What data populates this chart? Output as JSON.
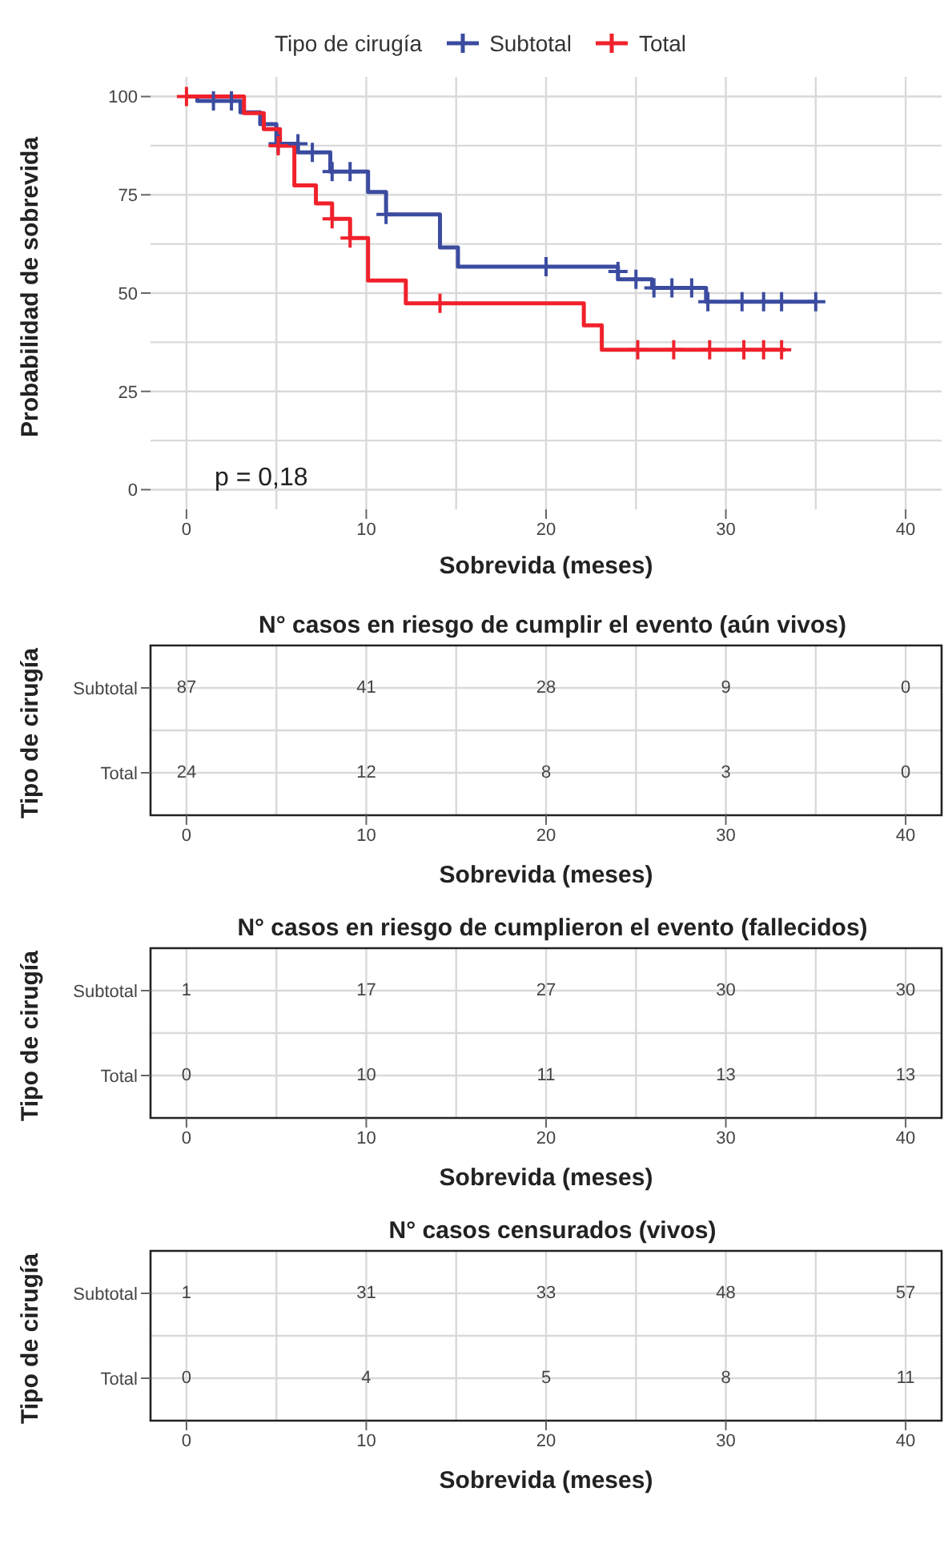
{
  "chart_data": [
    {
      "type": "step",
      "ylabel": "Probabilidad de sobrevida",
      "xlabel": "Sobrevida (meses)",
      "legend_title": "Tipo de cirugía",
      "legend": "top",
      "grid": true,
      "xlim": [
        -2,
        42
      ],
      "xticks": [
        0,
        10,
        20,
        30,
        40
      ],
      "ylim": [
        -5,
        105
      ],
      "yticks": [
        0,
        25,
        50,
        75,
        100
      ],
      "annotations": [
        "p = 0,18"
      ],
      "series": [
        {
          "name": "Subtotal",
          "color": "#3b4ba0",
          "marker": "none",
          "x": [
            0,
            0.6,
            3,
            4.1,
            5,
            6.2,
            8,
            10.1,
            11.1,
            14.1,
            15.1,
            24,
            25.9,
            28.9,
            35
          ],
          "values": [
            100,
            98.9,
            96,
            93,
            88,
            85.8,
            80.9,
            75.7,
            70,
            61.6,
            56.7,
            53.5,
            51.3,
            47.8,
            47.8
          ]
        },
        {
          "name": "Total",
          "color": "#f0212b",
          "marker": "none",
          "x": [
            0,
            3.2,
            4.3,
            5.2,
            6,
            7.2,
            8.1,
            9.1,
            10.1,
            12.2,
            22.1,
            23.1,
            33.3
          ],
          "values": [
            100,
            95.8,
            91.7,
            87.5,
            77.4,
            72.8,
            68.9,
            64,
            53.2,
            47.4,
            41.8,
            35.6,
            35.6
          ]
        },
        {
          "type": "scatter",
          "color": "#3b4ba0",
          "marker": "cross",
          "x": [
            1.5,
            2.5,
            5.1,
            6.2,
            7,
            8.1,
            9.1,
            11.1,
            20,
            24,
            25,
            26,
            27,
            28.1,
            29,
            30.9,
            32.1,
            33.1,
            35
          ],
          "values": [
            98.9,
            98.9,
            88,
            88,
            85.8,
            80.9,
            80.9,
            70,
            56.7,
            55.5,
            53.5,
            51.3,
            51.3,
            51.3,
            47.8,
            47.8,
            47.8,
            47.8,
            47.8
          ]
        },
        {
          "type": "scatter",
          "color": "#f0212b",
          "marker": "cross",
          "x": [
            0,
            5.1,
            8.1,
            9.1,
            14.1,
            25.1,
            27.1,
            29.1,
            31,
            32.1,
            33.1
          ],
          "values": [
            100,
            87.5,
            68.9,
            64,
            47.4,
            35.6,
            35.6,
            35.6,
            35.6,
            35.6,
            35.6
          ]
        }
      ]
    },
    {
      "type": "heatmap",
      "title": "N° casos en riesgo de cumplir el evento (aún vivos)",
      "xlabel": "Sobrevida (meses)",
      "ylabel": "Tipo de cirugía",
      "grid": true,
      "data_labels": true,
      "categories": [
        "0",
        "10",
        "20",
        "30",
        "40"
      ],
      "y_categories": [
        "Subtotal",
        "Total"
      ],
      "cells": [
        [
          87,
          41,
          28,
          9,
          0
        ],
        [
          24,
          12,
          8,
          3,
          0
        ]
      ]
    },
    {
      "type": "heatmap",
      "title": "N° casos en riesgo de cumplieron el evento (fallecidos)",
      "xlabel": "Sobrevida (meses)",
      "ylabel": "Tipo de cirugía",
      "grid": true,
      "data_labels": true,
      "categories": [
        "0",
        "10",
        "20",
        "30",
        "40"
      ],
      "y_categories": [
        "Subtotal",
        "Total"
      ],
      "cells": [
        [
          1,
          17,
          27,
          30,
          30
        ],
        [
          0,
          10,
          11,
          13,
          13
        ]
      ]
    },
    {
      "type": "heatmap",
      "title": "N° casos censurados (vivos)",
      "xlabel": "Sobrevida (meses)",
      "ylabel": "Tipo de cirugía",
      "grid": true,
      "data_labels": true,
      "categories": [
        "0",
        "10",
        "20",
        "30",
        "40"
      ],
      "y_categories": [
        "Subtotal",
        "Total"
      ],
      "cells": [
        [
          1,
          31,
          33,
          48,
          57
        ],
        [
          0,
          4,
          5,
          8,
          11
        ]
      ]
    }
  ]
}
